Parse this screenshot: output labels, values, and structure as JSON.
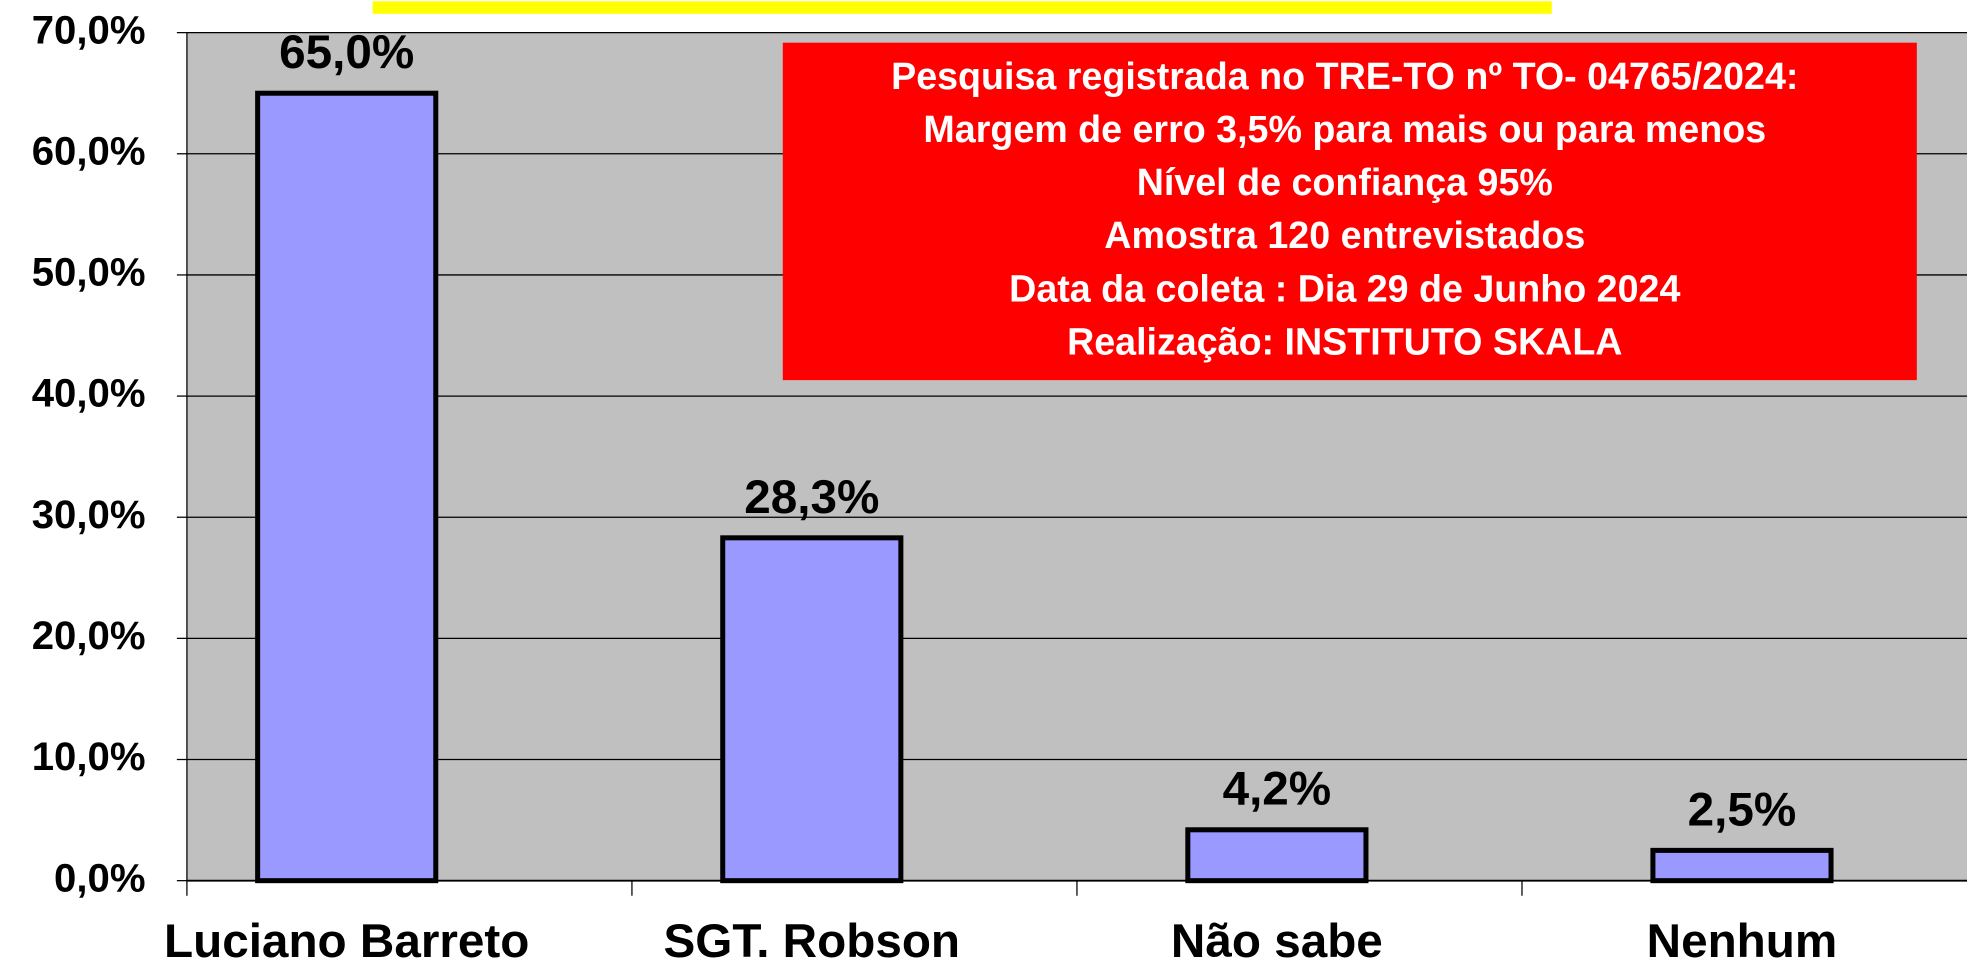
{
  "chart_data": {
    "type": "bar",
    "categories": [
      "Luciano Barreto",
      "SGT. Robson",
      "Não sabe",
      "Nenhum"
    ],
    "values": [
      65.0,
      28.3,
      4.2,
      2.5
    ],
    "value_labels": [
      "65,0%",
      "28,3%",
      "4,2%",
      "2,5%"
    ],
    "color": "#9999ff",
    "ylim": [
      0,
      70
    ],
    "yticks": [
      {
        "value": 0,
        "label": "0,0%"
      },
      {
        "value": 10,
        "label": "10,0%"
      },
      {
        "value": 20,
        "label": "20,0%"
      },
      {
        "value": 30,
        "label": "30,0%"
      },
      {
        "value": 40,
        "label": "40,0%"
      },
      {
        "value": 50,
        "label": "50,0%"
      },
      {
        "value": 60,
        "label": "60,0%"
      },
      {
        "value": 70,
        "label": "70,0%"
      }
    ],
    "grid": true,
    "annotation": [
      "Pesquisa registrada no TRE-TO nº TO- 04765/2024:",
      "Margem de erro 3,5% para mais ou para menos",
      "Nível de confiança 95%",
      "Amostra 120 entrevistados",
      "Data da coleta : Dia 29 de Junho 2024",
      "Realização: INSTITUTO SKALA"
    ]
  }
}
